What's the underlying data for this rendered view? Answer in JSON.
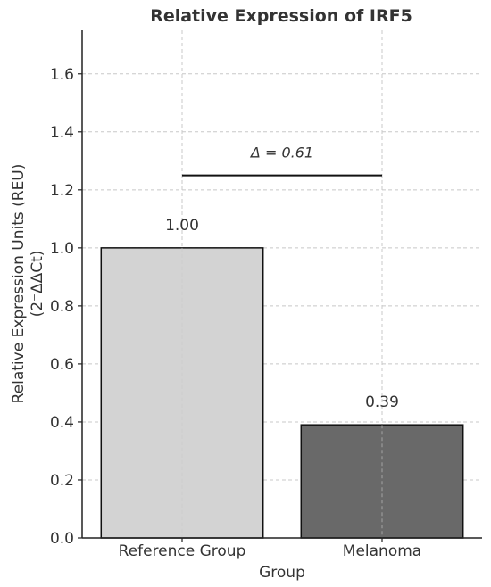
{
  "chart_data": {
    "type": "bar",
    "title": "Relative Expression of IRF5",
    "xlabel": "Group",
    "ylabel_line1": "Relative Expression Units (REU)",
    "ylabel_line2": "(2⁻ΔΔCt)",
    "categories": [
      "Reference Group",
      "Melanoma"
    ],
    "values": [
      1.0,
      0.39
    ],
    "data_labels": [
      "1.00",
      "0.39"
    ],
    "bar_colors": [
      "#d3d3d3",
      "#696969"
    ],
    "ylim": [
      0,
      1.75
    ],
    "yticks": [
      0.0,
      0.2,
      0.4,
      0.6,
      0.8,
      1.0,
      1.2,
      1.4,
      1.6
    ],
    "ytick_labels": [
      "0.0",
      "0.2",
      "0.4",
      "0.6",
      "0.8",
      "1.0",
      "1.2",
      "1.4",
      "1.6"
    ],
    "grid": true,
    "annotation": {
      "text": "Δ = 0.61",
      "y": 1.25
    }
  }
}
